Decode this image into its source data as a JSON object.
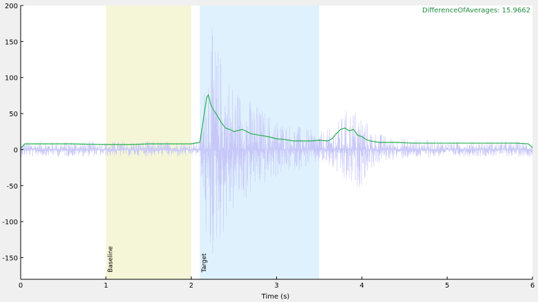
{
  "chart_data": {
    "type": "line",
    "xlabel": "Time (s)",
    "ylabel": "",
    "xlim": [
      0,
      6
    ],
    "ylim": [
      -180,
      200
    ],
    "x_ticks": [
      0,
      1,
      2,
      3,
      4,
      5,
      6
    ],
    "y_ticks": [
      200,
      150,
      100,
      50,
      0,
      -50,
      -100,
      -150
    ],
    "grid": false,
    "annotation": "DifferenceOfAverages: 15.9662",
    "regions": [
      {
        "label": "Baseline",
        "start": 1.0,
        "end": 2.0,
        "color": "#f5f5d8"
      },
      {
        "label": "Target",
        "start": 2.1,
        "end": 3.5,
        "color": "#dff1fd"
      }
    ],
    "series": [
      {
        "style": "raw-signal",
        "color": "#c8c8f8",
        "amplitude_envelope": {
          "x": [
            0,
            0.5,
            1.0,
            1.5,
            2.0,
            2.1,
            2.18,
            2.22,
            2.3,
            2.5,
            2.8,
            3.0,
            3.2,
            3.5,
            3.6,
            3.7,
            3.75,
            3.8,
            3.9,
            4.0,
            4.1,
            4.3,
            5.0,
            6.0
          ],
          "upper": [
            12,
            12,
            12,
            12,
            12,
            12,
            140,
            180,
            150,
            95,
            60,
            45,
            35,
            25,
            28,
            35,
            45,
            55,
            60,
            55,
            30,
            18,
            12,
            12
          ],
          "lower": [
            -10,
            -10,
            -10,
            -10,
            -10,
            -10,
            -150,
            -170,
            -140,
            -90,
            -55,
            -40,
            -30,
            -20,
            -25,
            -35,
            -45,
            -55,
            -60,
            -50,
            -28,
            -15,
            -10,
            -10
          ]
        }
      },
      {
        "style": "smoothed-average",
        "color": "#22b04a",
        "x": [
          0.0,
          0.05,
          0.3,
          0.6,
          1.0,
          1.3,
          1.5,
          1.8,
          2.0,
          2.1,
          2.14,
          2.18,
          2.2,
          2.23,
          2.26,
          2.3,
          2.35,
          2.4,
          2.45,
          2.5,
          2.6,
          2.7,
          2.8,
          2.9,
          3.0,
          3.1,
          3.2,
          3.3,
          3.4,
          3.5,
          3.6,
          3.65,
          3.7,
          3.75,
          3.8,
          3.85,
          3.9,
          3.95,
          4.0,
          4.05,
          4.1,
          4.2,
          4.4,
          4.6,
          4.8,
          5.0,
          5.2,
          5.4,
          5.6,
          5.8,
          5.95,
          6.0
        ],
        "y": [
          2,
          8,
          8,
          8,
          7,
          7,
          8,
          8,
          8,
          10,
          40,
          72,
          76,
          62,
          55,
          48,
          38,
          30,
          28,
          25,
          28,
          22,
          20,
          18,
          15,
          14,
          12,
          12,
          12,
          13,
          12,
          15,
          22,
          28,
          30,
          26,
          28,
          20,
          18,
          14,
          12,
          10,
          10,
          9,
          9,
          9,
          9,
          9,
          9,
          9,
          8,
          3
        ]
      }
    ]
  }
}
